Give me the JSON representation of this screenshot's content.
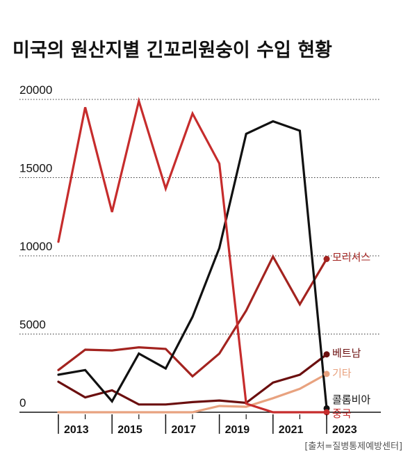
{
  "chart_data": {
    "type": "line",
    "title": "미국의 원산지별 긴꼬리원숭이 수입 현황",
    "source": "[출처=질병통제예방센터]",
    "x": [
      2013,
      2014,
      2015,
      2016,
      2017,
      2018,
      2019,
      2020,
      2021,
      2022,
      2023
    ],
    "x_tick_labels": [
      "2013",
      "2015",
      "2017",
      "2019",
      "2021",
      "2023"
    ],
    "ylim": [
      0,
      20000
    ],
    "y_ticks": [
      0,
      5000,
      10000,
      15000,
      20000
    ],
    "y_tick_labels": [
      "0",
      "5000",
      "10000",
      "15000",
      "20000"
    ],
    "grid": "horizontal dotted",
    "series": [
      {
        "name": "모리셔스",
        "color": "#a3231f",
        "values": [
          2700,
          4000,
          3950,
          4150,
          4050,
          2300,
          3750,
          6500,
          9950,
          6900,
          9800
        ]
      },
      {
        "name": "베트남",
        "color": "#6b0f0f",
        "values": [
          1950,
          950,
          1400,
          500,
          500,
          650,
          750,
          600,
          1900,
          2400,
          3700
        ]
      },
      {
        "name": "기타",
        "color": "#e8a27f",
        "values": [
          0,
          0,
          0,
          0,
          0,
          0,
          400,
          350,
          900,
          1500,
          2450
        ]
      },
      {
        "name": "콜롬비아",
        "color": "#111111",
        "values": [
          2400,
          2700,
          700,
          3750,
          2800,
          6100,
          10500,
          17800,
          18600,
          18000,
          250
        ]
      },
      {
        "name": "중국",
        "color": "#c62c2c",
        "values": [
          10900,
          19500,
          12800,
          19900,
          14300,
          19100,
          15900,
          550,
          0,
          0,
          0
        ]
      }
    ]
  }
}
